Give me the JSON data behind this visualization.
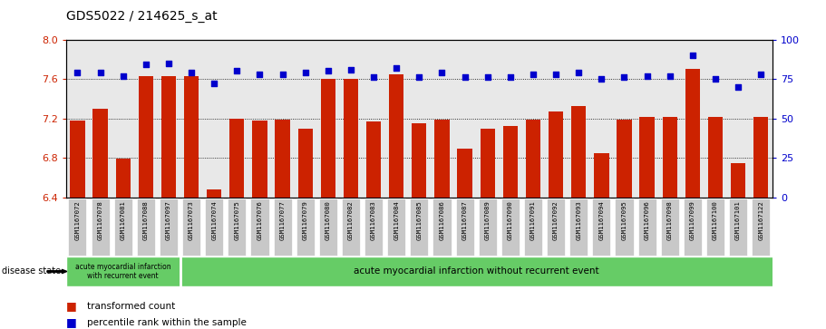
{
  "title": "GDS5022 / 214625_s_at",
  "samples": [
    "GSM1167072",
    "GSM1167078",
    "GSM1167081",
    "GSM1167088",
    "GSM1167097",
    "GSM1167073",
    "GSM1167074",
    "GSM1167075",
    "GSM1167076",
    "GSM1167077",
    "GSM1167079",
    "GSM1167080",
    "GSM1167082",
    "GSM1167083",
    "GSM1167084",
    "GSM1167085",
    "GSM1167086",
    "GSM1167087",
    "GSM1167089",
    "GSM1167090",
    "GSM1167091",
    "GSM1167092",
    "GSM1167093",
    "GSM1167094",
    "GSM1167095",
    "GSM1167096",
    "GSM1167098",
    "GSM1167099",
    "GSM1167100",
    "GSM1167101",
    "GSM1167122"
  ],
  "bar_values": [
    7.18,
    7.3,
    6.79,
    7.63,
    7.63,
    7.63,
    6.48,
    7.2,
    7.18,
    7.19,
    7.1,
    7.6,
    7.6,
    7.17,
    7.65,
    7.15,
    7.19,
    6.89,
    7.1,
    7.12,
    7.19,
    7.27,
    7.33,
    6.85,
    7.19,
    7.22,
    7.22,
    7.7,
    7.22,
    6.75,
    7.22
  ],
  "dot_values": [
    79,
    79,
    77,
    84,
    85,
    79,
    72,
    80,
    78,
    78,
    79,
    80,
    81,
    76,
    82,
    76,
    79,
    76,
    76,
    76,
    78,
    78,
    79,
    75,
    76,
    77,
    77,
    90,
    75,
    70,
    78
  ],
  "group1_count": 5,
  "group1_label": "acute myocardial infarction\nwith recurrent event",
  "group2_label": "acute myocardial infarction without recurrent event",
  "ymin": 6.4,
  "ymax": 8.0,
  "yticks_left": [
    6.4,
    6.8,
    7.2,
    7.6,
    8.0
  ],
  "yticks_right": [
    0,
    25,
    50,
    75,
    100
  ],
  "bar_color": "#cc2200",
  "dot_color": "#0000cc",
  "bg_plot": "#e8e8e8",
  "green_color": "#66cc66",
  "label_bar": "transformed count",
  "label_dot": "percentile rank within the sample",
  "disease_state_label": "disease state"
}
